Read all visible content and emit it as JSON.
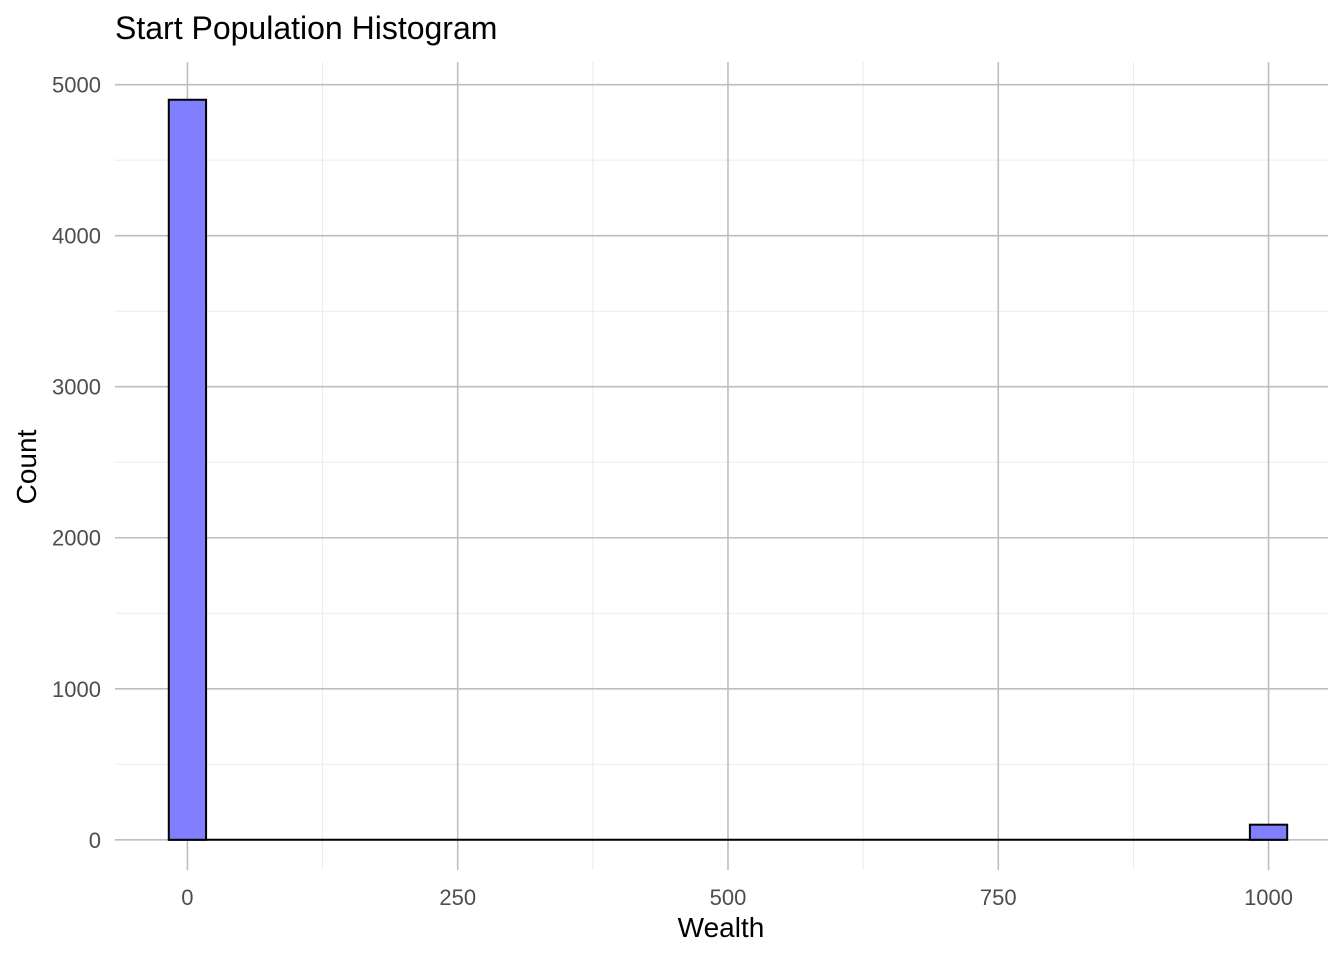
{
  "chart_data": {
    "type": "bar",
    "title": "Start Population Histogram",
    "xlabel": "Wealth",
    "ylabel": "Count",
    "x_ticks": [
      "0",
      "250",
      "500",
      "750",
      "1000"
    ],
    "y_ticks": [
      "0",
      "1000",
      "2000",
      "3000",
      "4000",
      "5000"
    ],
    "xlim": [
      -67,
      1055
    ],
    "ylim": [
      -200,
      5150
    ],
    "bin_width": 34.5,
    "bins": [
      {
        "center": 0,
        "count": 4900
      },
      {
        "center": 1000,
        "count": 100
      }
    ],
    "grid": true,
    "colors": {
      "bar_fill": "#7f7fff",
      "bar_stroke": "#000000",
      "major_grid": "#bebebe",
      "minor_grid": "#ebebeb",
      "tick_text": "#4d4d4d"
    }
  }
}
